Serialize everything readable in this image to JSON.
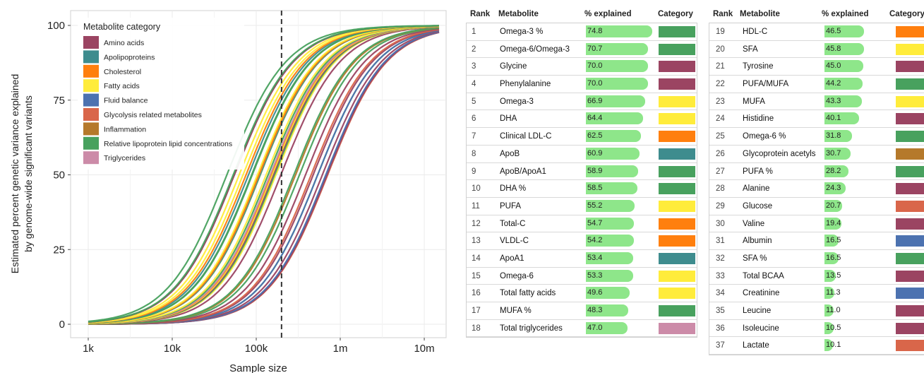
{
  "chart_data": [
    {
      "type": "line",
      "ylabel": "Estimated percent genetic variance explained\nby genome-wide significant variants",
      "xlabel": "Sample size",
      "xscale": "log",
      "xlim": [
        1000,
        15000000
      ],
      "ylim": [
        0,
        100
      ],
      "xticks": [
        "1k",
        "10k",
        "100k",
        "1m",
        "10m"
      ],
      "xtick_values": [
        1000,
        10000,
        100000,
        1000000,
        10000000
      ],
      "yticks": [
        0,
        25,
        50,
        75,
        100
      ],
      "grid": true,
      "legend": {
        "title": "Metabolite category",
        "placement": "top-left",
        "entries": [
          {
            "label": "Amino acids",
            "color": "#9b4462"
          },
          {
            "label": "Apolipoproteins",
            "color": "#3e8c8e"
          },
          {
            "label": "Cholesterol",
            "color": "#ff7f0e"
          },
          {
            "label": "Fatty acids",
            "color": "#ffec3b"
          },
          {
            "label": "Fluid balance",
            "color": "#4c72b0"
          },
          {
            "label": "Glycolysis related metabolites",
            "color": "#d9664a"
          },
          {
            "label": "Inflammation",
            "color": "#b5792b"
          },
          {
            "label": "Relative lipoprotein lipid concentrations",
            "color": "#48a15e"
          },
          {
            "label": "Triglycerides",
            "color": "#cc8ba8"
          }
        ]
      },
      "vline_x": 200000
    },
    {
      "type": "table",
      "columns": [
        "Rank",
        "Metabolite",
        "% explained",
        "Category"
      ],
      "rows": [
        {
          "rank": "1",
          "name": "Omega-3 %",
          "pct": 74.8,
          "cat": "Relative lipoprotein lipid concentrations"
        },
        {
          "rank": "2",
          "name": "Omega-6/Omega-3",
          "pct": 70.7,
          "cat": "Relative lipoprotein lipid concentrations"
        },
        {
          "rank": "3",
          "name": "Glycine",
          "pct": 70.0,
          "cat": "Amino acids"
        },
        {
          "rank": "4",
          "name": "Phenylalanine",
          "pct": 70.0,
          "cat": "Amino acids"
        },
        {
          "rank": "5",
          "name": "Omega-3",
          "pct": 66.9,
          "cat": "Fatty acids"
        },
        {
          "rank": "6",
          "name": "DHA",
          "pct": 64.4,
          "cat": "Fatty acids"
        },
        {
          "rank": "7",
          "name": "Clinical LDL-C",
          "pct": 62.5,
          "cat": "Cholesterol"
        },
        {
          "rank": "8",
          "name": "ApoB",
          "pct": 60.9,
          "cat": "Apolipoproteins"
        },
        {
          "rank": "9",
          "name": "ApoB/ApoA1",
          "pct": 58.9,
          "cat": "Relative lipoprotein lipid concentrations"
        },
        {
          "rank": "10",
          "name": "DHA %",
          "pct": 58.5,
          "cat": "Relative lipoprotein lipid concentrations"
        },
        {
          "rank": "11",
          "name": "PUFA",
          "pct": 55.2,
          "cat": "Fatty acids"
        },
        {
          "rank": "12",
          "name": "Total-C",
          "pct": 54.7,
          "cat": "Cholesterol"
        },
        {
          "rank": "13",
          "name": "VLDL-C",
          "pct": 54.2,
          "cat": "Cholesterol"
        },
        {
          "rank": "14",
          "name": "ApoA1",
          "pct": 53.4,
          "cat": "Apolipoproteins"
        },
        {
          "rank": "15",
          "name": "Omega-6",
          "pct": 53.3,
          "cat": "Fatty acids"
        },
        {
          "rank": "16",
          "name": "Total fatty acids",
          "pct": 49.6,
          "cat": "Fatty acids"
        },
        {
          "rank": "17",
          "name": "MUFA %",
          "pct": 48.3,
          "cat": "Relative lipoprotein lipid concentrations"
        },
        {
          "rank": "18",
          "name": "Total triglycerides",
          "pct": 47.0,
          "cat": "Triglycerides"
        }
      ]
    },
    {
      "type": "table",
      "columns": [
        "Rank",
        "Metabolite",
        "% explained",
        "Category"
      ],
      "rows": [
        {
          "rank": "19",
          "name": "HDL-C",
          "pct": 46.5,
          "cat": "Cholesterol"
        },
        {
          "rank": "20",
          "name": "SFA",
          "pct": 45.8,
          "cat": "Fatty acids"
        },
        {
          "rank": "21",
          "name": "Tyrosine",
          "pct": 45.0,
          "cat": "Amino acids"
        },
        {
          "rank": "22",
          "name": "PUFA/MUFA",
          "pct": 44.2,
          "cat": "Relative lipoprotein lipid concentrations"
        },
        {
          "rank": "23",
          "name": "MUFA",
          "pct": 43.3,
          "cat": "Fatty acids"
        },
        {
          "rank": "24",
          "name": "Histidine",
          "pct": 40.1,
          "cat": "Amino acids"
        },
        {
          "rank": "25",
          "name": "Omega-6 %",
          "pct": 31.8,
          "cat": "Relative lipoprotein lipid concentrations"
        },
        {
          "rank": "26",
          "name": "Glycoprotein acetyls",
          "pct": 30.7,
          "cat": "Inflammation"
        },
        {
          "rank": "27",
          "name": "PUFA %",
          "pct": 28.2,
          "cat": "Relative lipoprotein lipid concentrations"
        },
        {
          "rank": "28",
          "name": "Alanine",
          "pct": 24.3,
          "cat": "Amino acids"
        },
        {
          "rank": "29",
          "name": "Glucose",
          "pct": 20.7,
          "cat": "Glycolysis related metabolites"
        },
        {
          "rank": "30",
          "name": "Valine",
          "pct": 19.4,
          "cat": "Amino acids"
        },
        {
          "rank": "31",
          "name": "Albumin",
          "pct": 16.5,
          "cat": "Fluid balance"
        },
        {
          "rank": "32",
          "name": "SFA %",
          "pct": 16.5,
          "cat": "Relative lipoprotein lipid concentrations"
        },
        {
          "rank": "33",
          "name": "Total BCAA",
          "pct": 13.5,
          "cat": "Amino acids"
        },
        {
          "rank": "34",
          "name": "Creatinine",
          "pct": 11.3,
          "cat": "Fluid balance"
        },
        {
          "rank": "35",
          "name": "Leucine",
          "pct": 11.0,
          "cat": "Amino acids"
        },
        {
          "rank": "36",
          "name": "Isoleucine",
          "pct": 10.5,
          "cat": "Amino acids"
        },
        {
          "rank": "37",
          "name": "Lactate",
          "pct": 10.1,
          "cat": "Glycolysis related metabolites"
        }
      ]
    }
  ]
}
